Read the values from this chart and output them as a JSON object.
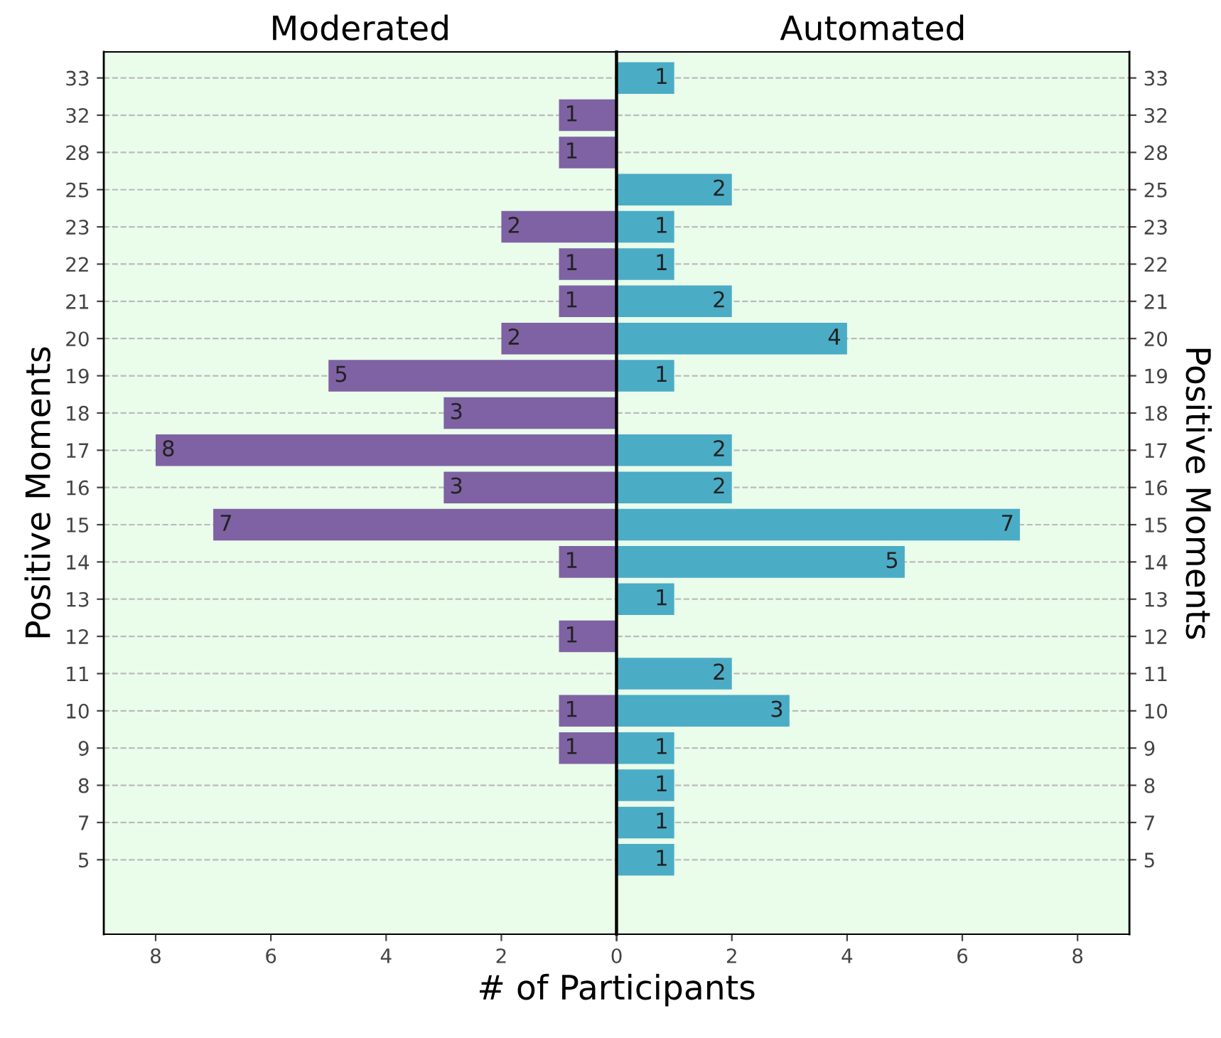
{
  "chart_data": [
    {
      "type": "bar",
      "orientation": "horizontal",
      "title": "Moderated",
      "xlabel": "# of Participants",
      "ylabel": "Positive Moments",
      "categories": [
        "33",
        "32",
        "28",
        "25",
        "23",
        "22",
        "21",
        "20",
        "19",
        "18",
        "17",
        "16",
        "15",
        "14",
        "13",
        "12",
        "11",
        "10",
        "9",
        "8",
        "7",
        "5"
      ],
      "series": [
        {
          "color": "#7f62a3",
          "values": [
            null,
            1,
            1,
            null,
            2,
            1,
            1,
            2,
            5,
            3,
            8,
            3,
            7,
            1,
            null,
            1,
            null,
            1,
            1,
            null,
            null,
            null
          ]
        }
      ],
      "xlim": [
        8.9,
        0
      ],
      "xticks": [
        8,
        6,
        4,
        2,
        {
          "value": 0,
          "label": null
        }
      ],
      "data_labels": true,
      "grid": "y"
    },
    {
      "type": "bar",
      "orientation": "horizontal",
      "title": "Automated",
      "y2label": "Positive Moments",
      "categories": [
        "33",
        "32",
        "28",
        "25",
        "23",
        "22",
        "21",
        "20",
        "19",
        "18",
        "17",
        "16",
        "15",
        "14",
        "13",
        "12",
        "11",
        "10",
        "9",
        "8",
        "7",
        "5"
      ],
      "series": [
        {
          "color": "#4bacc6",
          "values": [
            1,
            null,
            null,
            2,
            1,
            1,
            2,
            4,
            1,
            null,
            2,
            2,
            7,
            5,
            1,
            null,
            2,
            3,
            1,
            1,
            1,
            1
          ]
        }
      ],
      "xlim": [
        0,
        8.9
      ],
      "xticks": [
        0,
        2,
        4,
        6,
        8
      ],
      "data_labels": true,
      "grid": "y"
    }
  ]
}
